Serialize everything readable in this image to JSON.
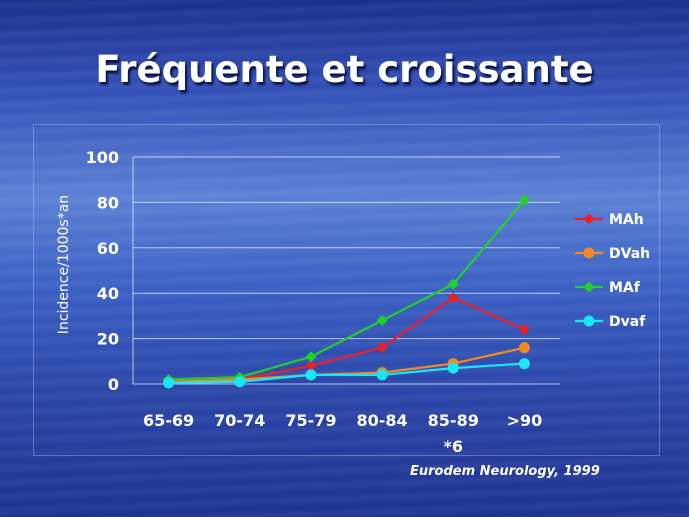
{
  "slide": {
    "title": "Fréquente et croissante",
    "source": "Eurodem Neurology, 1999"
  },
  "chart_data": {
    "type": "line",
    "ylabel": "Incidence/1000s*an",
    "ylim": [
      0,
      100
    ],
    "yticks": [
      0,
      20,
      40,
      60,
      80,
      100
    ],
    "grid": true,
    "legend_position": "right",
    "categories": [
      "65-69",
      "70-74",
      "75-79",
      "80-84",
      "85-89",
      ">90"
    ],
    "category_annotation": {
      "category": "85-89",
      "text": "*6"
    },
    "series": [
      {
        "name": "MAh",
        "color": "#e8202a",
        "marker": "diamond",
        "values": [
          1,
          2,
          8,
          16,
          38,
          24
        ]
      },
      {
        "name": "DVah",
        "color": "#f08a24",
        "marker": "circle",
        "values": [
          1,
          2,
          4,
          5,
          9,
          16
        ]
      },
      {
        "name": "MAf",
        "color": "#22d02a",
        "marker": "diamond",
        "values": [
          2,
          3,
          12,
          28,
          44,
          81
        ]
      },
      {
        "name": "Dvaf",
        "color": "#18e8f5",
        "marker": "circle",
        "values": [
          0.5,
          1,
          4,
          4,
          7,
          9
        ]
      }
    ]
  }
}
